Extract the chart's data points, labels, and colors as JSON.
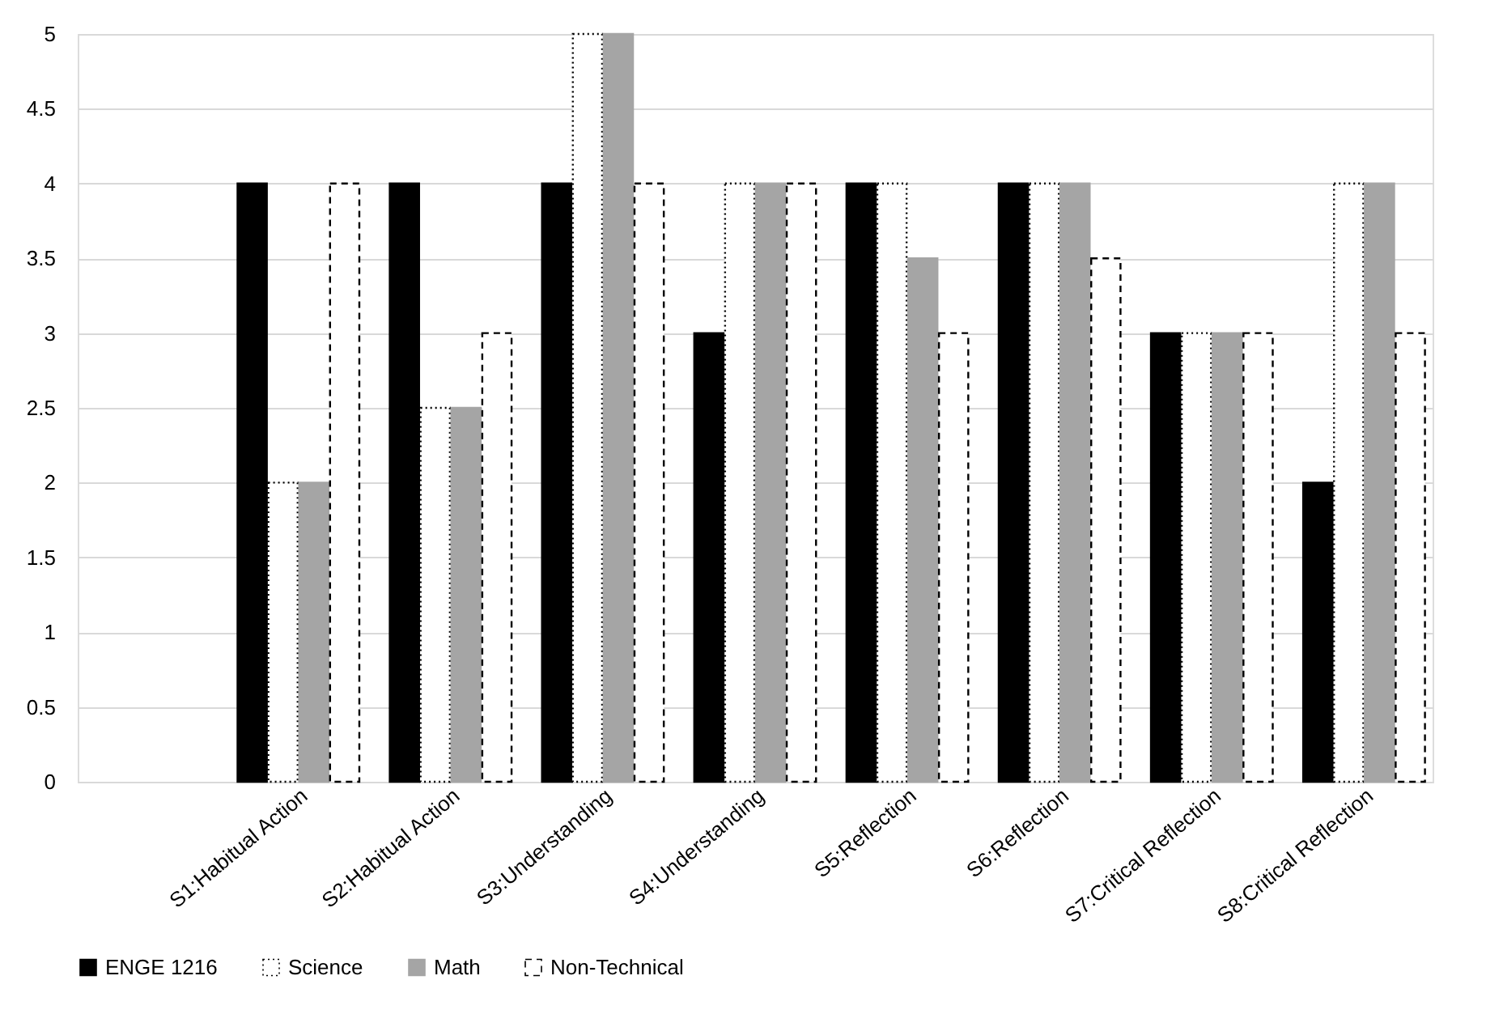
{
  "chart_data": {
    "type": "bar",
    "categories": [
      null,
      "S1:Habitual Action",
      "S2:Habitual Action",
      "S3:Understanding",
      "S4:Understanding",
      "S5:Reflection",
      "S6:Reflection",
      "S7:Critical Reflection",
      "S8:Critical Reflection"
    ],
    "series": [
      {
        "name": "ENGE 1216",
        "color": "#000000",
        "values": [
          null,
          4,
          4,
          4,
          3,
          4,
          4,
          3,
          2
        ]
      },
      {
        "name": "Science",
        "color": "#ffffff",
        "line_style": "dotted",
        "values": [
          null,
          2,
          2.5,
          5,
          4,
          4,
          4,
          3,
          4
        ]
      },
      {
        "name": "Math",
        "color": "#a5a5a5",
        "values": [
          null,
          2,
          2.5,
          5,
          4,
          3.5,
          4,
          3,
          4
        ]
      },
      {
        "name": "Non-Technical",
        "color": "#ffffff",
        "line_style": "dashed",
        "values": [
          null,
          4,
          3,
          4,
          4,
          3,
          3.5,
          3,
          3
        ]
      }
    ],
    "ylim": [
      0,
      5
    ],
    "yticks": [
      0,
      0.5,
      1,
      1.5,
      2,
      2.5,
      3,
      3.5,
      4,
      4.5,
      5
    ],
    "grid": "y",
    "legend": "bottom"
  }
}
